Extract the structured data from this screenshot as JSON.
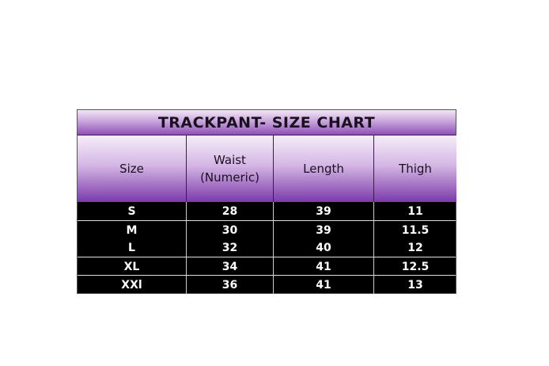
{
  "title": "TRACKPANT- SIZE CHART",
  "headers": [
    "Size",
    "Waist\n(Numeric)",
    "Length",
    "Thigh"
  ],
  "header_waist_line1": "Waist",
  "header_waist_line2": "(Numeric)",
  "rows": [
    [
      "S",
      "28",
      "39",
      "11"
    ],
    [
      "M",
      "30",
      "39",
      "11.5"
    ],
    [
      "L",
      "32",
      "40",
      "12"
    ],
    [
      "XL",
      "34",
      "41",
      "12.5"
    ],
    [
      "XXl",
      "36",
      "41",
      "13"
    ]
  ],
  "colors": {
    "header_purple": "#8f4fb8",
    "body_bg": "#000000",
    "body_text": "#ffffff"
  }
}
